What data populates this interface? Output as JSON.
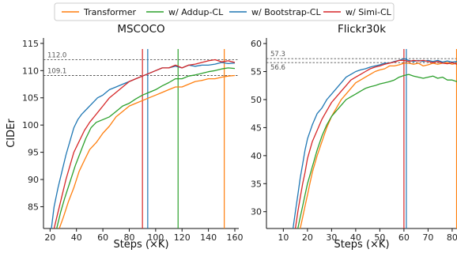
{
  "chart_data": [
    {
      "type": "line",
      "title": "MSCOCO",
      "xlabel": "Steps (×K)",
      "ylabel": "CIDEr",
      "xlim": [
        15,
        163
      ],
      "ylim": [
        81,
        116
      ],
      "xticks": [
        20,
        40,
        60,
        80,
        100,
        120,
        140,
        160
      ],
      "yticks": [
        85,
        90,
        95,
        100,
        105,
        110,
        115
      ],
      "hlines": [
        {
          "y": 112.0,
          "label": "112.0"
        },
        {
          "y": 109.1,
          "label": "109.1"
        }
      ],
      "vlines": [
        {
          "x": 90,
          "series": "w/ Simi-CL"
        },
        {
          "x": 94,
          "series": "w/ Bootstrap-CL"
        },
        {
          "x": 117,
          "series": "w/ Addup-CL"
        },
        {
          "x": 152,
          "series": "Transformer"
        }
      ],
      "series": [
        {
          "name": "Transformer",
          "color": "#ff7f0e",
          "x": [
            27,
            30,
            34,
            38,
            42,
            46,
            50,
            55,
            60,
            65,
            70,
            75,
            80,
            85,
            90,
            95,
            100,
            105,
            110,
            115,
            120,
            125,
            130,
            135,
            140,
            145,
            150,
            155,
            160
          ],
          "y": [
            81,
            83,
            86,
            88.5,
            91.5,
            93.5,
            95.5,
            96.8,
            98.5,
            99.8,
            101.5,
            102.5,
            103.5,
            104,
            104.5,
            105,
            105.5,
            106,
            106.5,
            107,
            107,
            107.5,
            108,
            108.2,
            108.5,
            108.5,
            108.8,
            109,
            109.1
          ]
        },
        {
          "name": "w/ Addup-CL",
          "color": "#2ca02c",
          "x": [
            25,
            28,
            31,
            35,
            39,
            43,
            47,
            51,
            55,
            60,
            65,
            70,
            75,
            80,
            85,
            90,
            95,
            100,
            105,
            110,
            115,
            120,
            125,
            130,
            135,
            140,
            145,
            150,
            155,
            160
          ],
          "y": [
            81,
            84,
            86.5,
            89.5,
            92.5,
            95,
            97.5,
            99.5,
            100.5,
            101,
            101.5,
            102.5,
            103.5,
            104,
            104.8,
            105.5,
            106,
            106.5,
            107.2,
            107.8,
            108.5,
            108.5,
            109,
            109.2,
            109.5,
            109.8,
            110,
            110.3,
            110.5,
            110.4
          ]
        },
        {
          "name": "w/ Bootstrap-CL",
          "color": "#1f77b4",
          "x": [
            21,
            23,
            26,
            29,
            32,
            35,
            38,
            41,
            44,
            48,
            52,
            56,
            60,
            65,
            70,
            75,
            80,
            85,
            90,
            95,
            100,
            105,
            110,
            115,
            120,
            125,
            130,
            135,
            140,
            145,
            150,
            155,
            160
          ],
          "y": [
            81,
            85,
            88.5,
            91.5,
            94.5,
            97,
            99.5,
            101,
            102,
            103,
            104,
            105,
            105.5,
            106.5,
            107,
            107.5,
            108,
            108.5,
            109,
            109.5,
            110,
            110.5,
            110.5,
            110.8,
            110.5,
            111,
            110.8,
            111,
            111,
            111.2,
            111.5,
            111.3,
            111.4
          ]
        },
        {
          "name": "w/ Simi-CL",
          "color": "#d62728",
          "x": [
            23,
            26,
            29,
            32,
            35,
            38,
            42,
            46,
            50,
            55,
            60,
            65,
            70,
            75,
            80,
            85,
            90,
            95,
            100,
            105,
            110,
            115,
            120,
            125,
            130,
            135,
            140,
            145,
            150,
            155,
            160
          ],
          "y": [
            81,
            84,
            87,
            90,
            92.5,
            95,
            97,
            99,
            100.5,
            102,
            103.5,
            105,
            106,
            107,
            108,
            108.5,
            109,
            109.5,
            110,
            110.5,
            110.5,
            111,
            110.5,
            111,
            111.2,
            111.5,
            111.8,
            112,
            111.6,
            111.8,
            111.5
          ]
        }
      ]
    },
    {
      "type": "line",
      "title": "Flickr30k",
      "xlabel": "Steps (×K)",
      "ylabel": "",
      "xlim": [
        3,
        82
      ],
      "ylim": [
        27,
        61
      ],
      "xticks": [
        10,
        20,
        30,
        40,
        50,
        60,
        70,
        80
      ],
      "yticks": [
        30,
        35,
        40,
        45,
        50,
        55,
        60
      ],
      "hlines": [
        {
          "y": 57.3,
          "label": "57.3"
        },
        {
          "y": 56.6,
          "label": "56.6"
        }
      ],
      "vlines": [
        {
          "x": 60,
          "series": "w/ Simi-CL"
        },
        {
          "x": 61,
          "series": "w/ Bootstrap-CL"
        },
        {
          "x": 82,
          "series": "Transformer"
        }
      ],
      "series": [
        {
          "name": "Transformer",
          "color": "#ff7f0e",
          "x": [
            17,
            18,
            19,
            20,
            21,
            22,
            24,
            26,
            28,
            30,
            32,
            34,
            36,
            38,
            40,
            42,
            44,
            46,
            48,
            50,
            52,
            54,
            56,
            58,
            60,
            62,
            64,
            66,
            68,
            70,
            72,
            74,
            76,
            78,
            80,
            82
          ],
          "y": [
            27,
            29,
            31,
            33,
            35,
            37,
            40,
            42.5,
            45,
            47,
            48.5,
            50,
            51,
            52,
            53,
            53.5,
            54,
            54.5,
            55,
            55.3,
            55.5,
            56,
            56,
            56.2,
            56.5,
            56.5,
            56.3,
            56.5,
            56,
            56.2,
            56.5,
            56.3,
            56.5,
            56.6,
            56.3,
            56.5
          ]
        },
        {
          "name": "w/ Addup-CL",
          "color": "#2ca02c",
          "x": [
            16,
            17,
            18,
            19,
            20,
            22,
            24,
            26,
            28,
            30,
            32,
            34,
            36,
            38,
            40,
            42,
            44,
            46,
            48,
            50,
            52,
            54,
            56,
            58,
            60,
            62,
            64,
            66,
            68,
            70,
            72,
            74,
            76,
            78,
            80,
            82
          ],
          "y": [
            27,
            29,
            31,
            33,
            35,
            38,
            41,
            43.5,
            45.5,
            47,
            48,
            49,
            50,
            50.5,
            51,
            51.5,
            52,
            52.3,
            52.5,
            52.8,
            53,
            53.2,
            53.5,
            54,
            54.3,
            54.5,
            54.2,
            54,
            53.8,
            54,
            54.2,
            53.8,
            54,
            53.5,
            53.5,
            53.2
          ]
        },
        {
          "name": "w/ Bootstrap-CL",
          "color": "#1f77b4",
          "x": [
            14,
            15,
            16,
            17,
            18,
            19,
            20,
            22,
            24,
            26,
            28,
            30,
            32,
            34,
            36,
            38,
            40,
            42,
            44,
            46,
            48,
            50,
            52,
            54,
            56,
            58,
            60,
            62,
            64,
            66,
            68,
            70,
            72,
            74,
            76,
            78,
            80,
            82
          ],
          "y": [
            27,
            30,
            33,
            36,
            38.5,
            41,
            43,
            45.5,
            47.5,
            48.5,
            50,
            51,
            52,
            53,
            54,
            54.5,
            55,
            55.3,
            55.5,
            55.8,
            56,
            56.2,
            56.5,
            56.5,
            56.8,
            57,
            57.3,
            57,
            56.8,
            57,
            56.8,
            57,
            56.8,
            57,
            56.7,
            56.9,
            56.7,
            56.8
          ]
        },
        {
          "name": "w/ Simi-CL",
          "color": "#d62728",
          "x": [
            15,
            16,
            17,
            18,
            19,
            20,
            22,
            24,
            26,
            28,
            30,
            32,
            34,
            36,
            38,
            40,
            42,
            44,
            46,
            48,
            50,
            52,
            54,
            56,
            58,
            60,
            62,
            64,
            66,
            68,
            70,
            72,
            74,
            76,
            78,
            80,
            82
          ],
          "y": [
            27,
            30,
            32.5,
            35,
            37,
            39.5,
            42.5,
            44.5,
            46.5,
            48,
            49.5,
            50.5,
            51.5,
            52.5,
            53.5,
            54,
            54.5,
            55,
            55.5,
            55.8,
            56,
            56.3,
            56.5,
            56.7,
            57,
            57,
            56.8,
            57,
            56.9,
            57,
            56.8,
            56.6,
            56.8,
            56.5,
            56.4,
            56.6,
            56.3
          ]
        }
      ]
    }
  ]
}
